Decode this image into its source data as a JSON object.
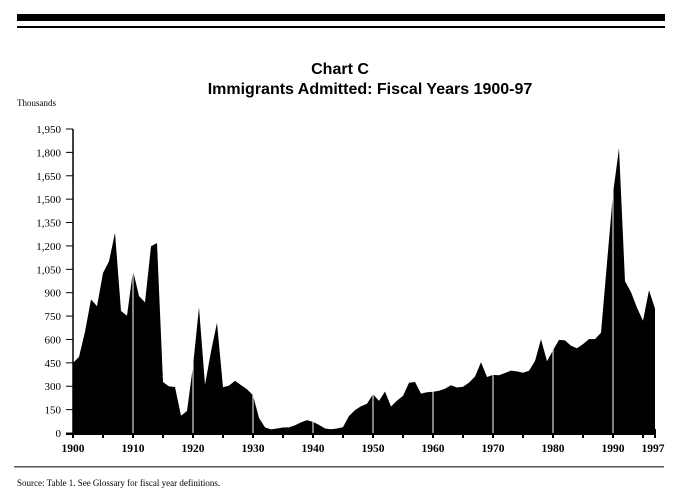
{
  "chart_data": {
    "type": "area",
    "title": "Chart C",
    "subtitle": "Immigrants Admitted: Fiscal Years 1900-97",
    "ylabel": "Thousands",
    "xlabel": "",
    "xlim": [
      1900,
      1997
    ],
    "ylim": [
      0,
      1950
    ],
    "x_ticks": [
      "1900",
      "1910",
      "1920",
      "1930",
      "1940",
      "1950",
      "1960",
      "1970",
      "1980",
      "1990",
      "1997"
    ],
    "x_tick_values": [
      1900,
      1910,
      1920,
      1930,
      1940,
      1950,
      1960,
      1970,
      1980,
      1990,
      1997
    ],
    "y_ticks": [
      "0",
      "150",
      "300",
      "450",
      "600",
      "750",
      "900",
      "1,050",
      "1,200",
      "1,350",
      "1,500",
      "1,650",
      "1,800",
      "1,950"
    ],
    "y_tick_values": [
      0,
      150,
      300,
      450,
      600,
      750,
      900,
      1050,
      1200,
      1350,
      1500,
      1650,
      1800,
      1950
    ],
    "grid": "vertical white lines at each decade",
    "fill_color": "#000000",
    "x": [
      1900,
      1901,
      1902,
      1903,
      1904,
      1905,
      1906,
      1907,
      1908,
      1909,
      1910,
      1911,
      1912,
      1913,
      1914,
      1915,
      1916,
      1917,
      1918,
      1919,
      1920,
      1921,
      1922,
      1923,
      1924,
      1925,
      1926,
      1927,
      1928,
      1929,
      1930,
      1931,
      1932,
      1933,
      1934,
      1935,
      1936,
      1937,
      1938,
      1939,
      1940,
      1941,
      1942,
      1943,
      1944,
      1945,
      1946,
      1947,
      1948,
      1949,
      1950,
      1951,
      1952,
      1953,
      1954,
      1955,
      1956,
      1957,
      1958,
      1959,
      1960,
      1961,
      1962,
      1963,
      1964,
      1965,
      1966,
      1967,
      1968,
      1969,
      1970,
      1971,
      1972,
      1973,
      1974,
      1975,
      1976,
      1977,
      1978,
      1979,
      1980,
      1981,
      1982,
      1983,
      1984,
      1985,
      1986,
      1987,
      1988,
      1989,
      1990,
      1991,
      1992,
      1993,
      1994,
      1995,
      1996,
      1997
    ],
    "values": [
      449,
      488,
      649,
      857,
      813,
      1026,
      1101,
      1285,
      783,
      752,
      1042,
      879,
      838,
      1198,
      1218,
      327,
      299,
      295,
      111,
      141,
      430,
      805,
      310,
      523,
      707,
      294,
      304,
      335,
      307,
      280,
      242,
      97,
      36,
      23,
      29,
      35,
      36,
      50,
      68,
      83,
      71,
      52,
      29,
      24,
      29,
      38,
      109,
      147,
      171,
      188,
      249,
      206,
      266,
      170,
      208,
      238,
      322,
      327,
      253,
      261,
      265,
      271,
      284,
      306,
      292,
      297,
      323,
      362,
      454,
      359,
      373,
      370,
      385,
      400,
      395,
      386,
      399,
      462,
      601,
      460,
      531,
      597,
      594,
      560,
      544,
      570,
      602,
      602,
      643,
      1091,
      1536,
      1827,
      974,
      904,
      804,
      720,
      916,
      798
    ]
  },
  "source": "Source:  Table 1.  See Glossary for fiscal year definitions."
}
